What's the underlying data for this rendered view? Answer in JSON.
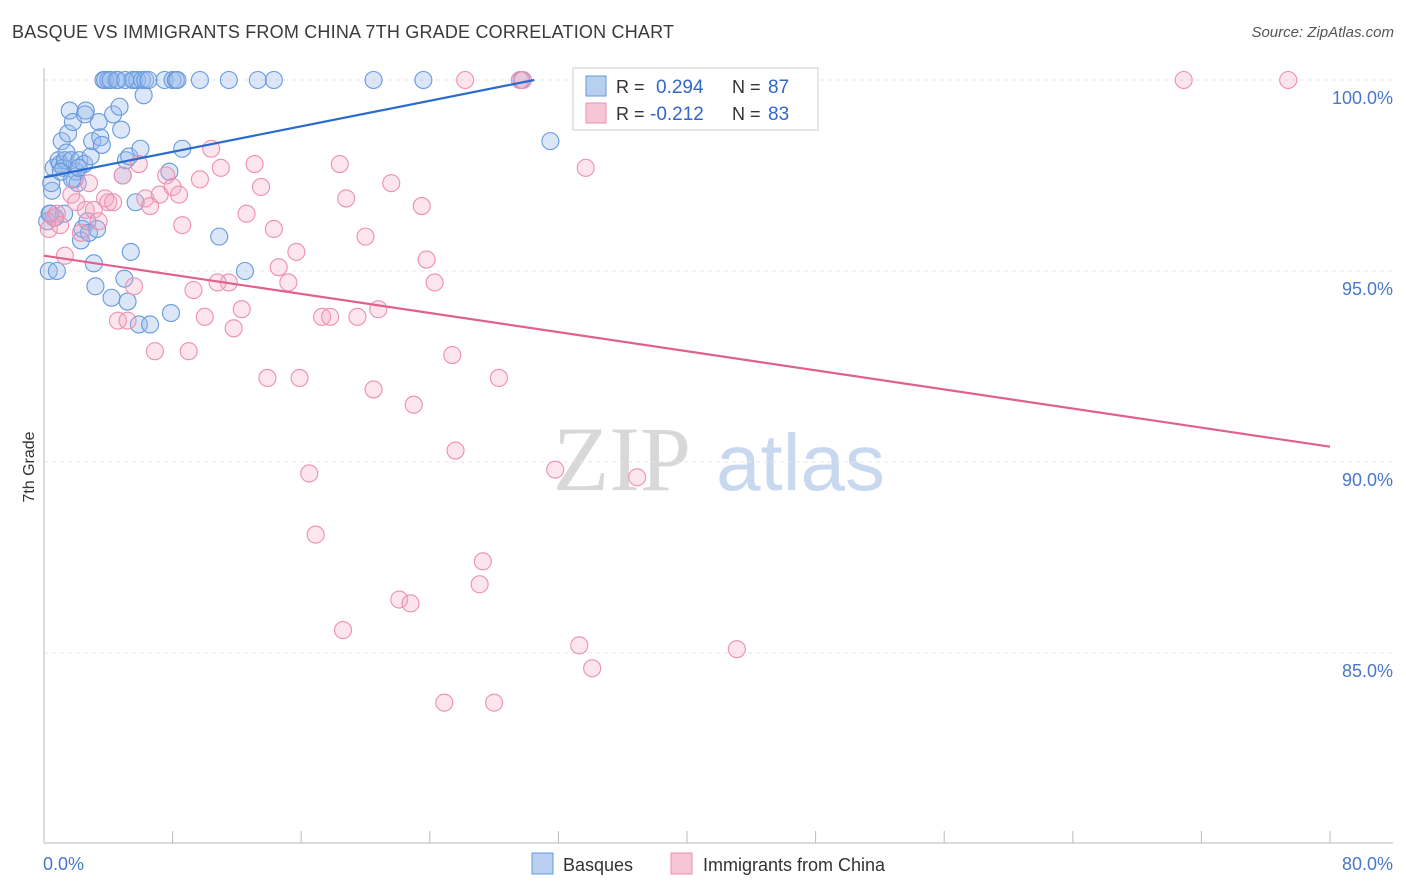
{
  "title": "BASQUE VS IMMIGRANTS FROM CHINA 7TH GRADE CORRELATION CHART",
  "source": "Source: ZipAtlas.com",
  "watermark": {
    "part1": "ZIP",
    "part2": "atlas"
  },
  "chart_data": {
    "type": "scatter",
    "xlabel": "",
    "ylabel": "7th Grade",
    "xlim": [
      0,
      80
    ],
    "ylim": [
      80,
      100.5
    ],
    "x_tick_labels": {
      "left": "0.0%",
      "right": "80.0%"
    },
    "y_ticks": [
      {
        "value": 100,
        "label": "100.0%"
      },
      {
        "value": 95,
        "label": "95.0%"
      },
      {
        "value": 90,
        "label": "90.0%"
      },
      {
        "value": 85,
        "label": "85.0%"
      }
    ],
    "grid": true,
    "legend_position": "top-center",
    "bottom_legend": [
      "Basques",
      "Immigrants from China"
    ],
    "stats": [
      {
        "r_label": "R =",
        "r": "0.294",
        "n_label": "N =",
        "n": "87"
      },
      {
        "r_label": "R =",
        "r": "-0.212",
        "n_label": "N =",
        "n": "83"
      }
    ],
    "series": [
      {
        "name": "Basques",
        "color": "#6699dd",
        "line_color": "#2a6ccc",
        "trend": {
          "x": [
            0,
            30.5
          ],
          "y": [
            97.45,
            100.0
          ]
        },
        "points": [
          [
            0.3,
            95.0
          ],
          [
            0.4,
            96.5
          ],
          [
            0.5,
            97.1
          ],
          [
            0.6,
            97.7
          ],
          [
            0.7,
            96.4
          ],
          [
            0.8,
            95.0
          ],
          [
            0.9,
            97.9
          ],
          [
            1.0,
            97.8
          ],
          [
            1.1,
            98.4
          ],
          [
            1.2,
            97.7
          ],
          [
            1.3,
            97.9
          ],
          [
            1.4,
            98.1
          ],
          [
            1.5,
            98.6
          ],
          [
            1.6,
            99.2
          ],
          [
            1.7,
            97.9
          ],
          [
            1.8,
            98.9
          ],
          [
            1.9,
            97.4
          ],
          [
            2.0,
            97.6
          ],
          [
            2.1,
            97.3
          ],
          [
            2.2,
            97.9
          ],
          [
            2.3,
            95.8
          ],
          [
            2.4,
            96.1
          ],
          [
            2.5,
            97.8
          ],
          [
            2.6,
            99.2
          ],
          [
            2.7,
            96.3
          ],
          [
            2.8,
            96.0
          ],
          [
            2.9,
            98.0
          ],
          [
            3.0,
            98.4
          ],
          [
            3.1,
            95.2
          ],
          [
            3.2,
            94.6
          ],
          [
            3.3,
            96.1
          ],
          [
            3.4,
            98.9
          ],
          [
            3.5,
            98.5
          ],
          [
            3.6,
            98.3
          ],
          [
            3.7,
            100.0
          ],
          [
            3.8,
            100.0
          ],
          [
            4.0,
            100.0
          ],
          [
            4.2,
            94.3
          ],
          [
            4.3,
            99.1
          ],
          [
            4.5,
            100.0
          ],
          [
            4.6,
            100.0
          ],
          [
            4.7,
            99.3
          ],
          [
            4.8,
            98.7
          ],
          [
            4.9,
            97.5
          ],
          [
            5.0,
            94.8
          ],
          [
            5.1,
            97.9
          ],
          [
            5.2,
            94.2
          ],
          [
            5.3,
            98.0
          ],
          [
            5.4,
            95.5
          ],
          [
            5.5,
            100.0
          ],
          [
            5.6,
            100.0
          ],
          [
            5.7,
            96.8
          ],
          [
            5.8,
            100.0
          ],
          [
            5.9,
            93.6
          ],
          [
            6.0,
            98.2
          ],
          [
            6.1,
            100.0
          ],
          [
            6.2,
            99.6
          ],
          [
            6.3,
            100.0
          ],
          [
            6.5,
            100.0
          ],
          [
            6.6,
            93.6
          ],
          [
            7.5,
            100.0
          ],
          [
            7.8,
            97.6
          ],
          [
            7.9,
            93.9
          ],
          [
            8.0,
            100.0
          ],
          [
            8.2,
            100.0
          ],
          [
            8.3,
            100.0
          ],
          [
            8.6,
            98.2
          ],
          [
            9.7,
            100.0
          ],
          [
            10.9,
            95.9
          ],
          [
            11.5,
            100.0
          ],
          [
            12.5,
            95.0
          ],
          [
            13.3,
            100.0
          ],
          [
            14.3,
            100.0
          ],
          [
            20.5,
            100.0
          ],
          [
            23.6,
            100.0
          ],
          [
            29.7,
            100.0
          ],
          [
            31.5,
            98.4
          ],
          [
            0.2,
            96.3
          ],
          [
            0.35,
            96.5
          ],
          [
            0.45,
            97.3
          ],
          [
            1.05,
            97.6
          ],
          [
            1.25,
            96.5
          ],
          [
            1.75,
            97.4
          ],
          [
            2.15,
            97.7
          ],
          [
            4.15,
            100.0
          ],
          [
            5.05,
            100.0
          ],
          [
            2.55,
            99.1
          ]
        ]
      },
      {
        "name": "Immigrants from China",
        "color": "#ee8fae",
        "line_color": "#e0608e",
        "trend": {
          "x": [
            0,
            80
          ],
          "y": [
            95.4,
            90.4
          ]
        },
        "points": [
          [
            0.3,
            96.1
          ],
          [
            0.6,
            96.4
          ],
          [
            0.8,
            96.5
          ],
          [
            1.0,
            96.2
          ],
          [
            1.3,
            95.4
          ],
          [
            1.7,
            97.0
          ],
          [
            2.0,
            96.8
          ],
          [
            2.3,
            96.0
          ],
          [
            2.6,
            96.6
          ],
          [
            2.8,
            97.3
          ],
          [
            3.1,
            96.6
          ],
          [
            3.4,
            96.3
          ],
          [
            3.8,
            96.9
          ],
          [
            4.0,
            96.8
          ],
          [
            4.3,
            96.8
          ],
          [
            4.6,
            93.7
          ],
          [
            4.9,
            97.5
          ],
          [
            5.2,
            93.7
          ],
          [
            5.6,
            94.6
          ],
          [
            5.9,
            97.8
          ],
          [
            6.3,
            96.9
          ],
          [
            6.6,
            96.7
          ],
          [
            6.9,
            92.9
          ],
          [
            7.2,
            97.0
          ],
          [
            7.6,
            97.5
          ],
          [
            8.0,
            97.2
          ],
          [
            8.4,
            97.0
          ],
          [
            8.6,
            96.2
          ],
          [
            9.0,
            92.9
          ],
          [
            9.3,
            94.5
          ],
          [
            9.7,
            97.4
          ],
          [
            10.0,
            93.8
          ],
          [
            10.4,
            98.2
          ],
          [
            11.0,
            97.7
          ],
          [
            11.5,
            94.7
          ],
          [
            11.8,
            93.5
          ],
          [
            12.3,
            94.0
          ],
          [
            12.6,
            96.5
          ],
          [
            13.1,
            97.8
          ],
          [
            13.5,
            97.2
          ],
          [
            14.3,
            96.1
          ],
          [
            14.6,
            95.1
          ],
          [
            15.2,
            94.7
          ],
          [
            15.7,
            95.5
          ],
          [
            16.5,
            89.7
          ],
          [
            17.3,
            93.8
          ],
          [
            17.8,
            93.8
          ],
          [
            18.4,
            97.8
          ],
          [
            18.8,
            96.9
          ],
          [
            19.5,
            93.8
          ],
          [
            20.0,
            95.9
          ],
          [
            20.5,
            91.9
          ],
          [
            20.8,
            94.0
          ],
          [
            21.6,
            97.3
          ],
          [
            22.1,
            86.4
          ],
          [
            22.8,
            86.3
          ],
          [
            23.0,
            91.5
          ],
          [
            23.5,
            96.7
          ],
          [
            23.8,
            95.3
          ],
          [
            24.3,
            94.7
          ],
          [
            24.9,
            83.7
          ],
          [
            25.4,
            92.8
          ],
          [
            25.6,
            90.3
          ],
          [
            26.2,
            100.0
          ],
          [
            27.1,
            86.8
          ],
          [
            27.3,
            87.4
          ],
          [
            28.0,
            83.7
          ],
          [
            28.3,
            92.2
          ],
          [
            29.6,
            100.0
          ],
          [
            29.8,
            100.0
          ],
          [
            31.8,
            89.8
          ],
          [
            33.3,
            85.2
          ],
          [
            33.7,
            97.7
          ],
          [
            34.1,
            84.6
          ],
          [
            36.9,
            89.6
          ],
          [
            43.1,
            85.1
          ],
          [
            70.9,
            100.0
          ],
          [
            77.4,
            100.0
          ],
          [
            10.8,
            94.7
          ],
          [
            13.9,
            92.2
          ],
          [
            15.9,
            92.2
          ],
          [
            16.9,
            88.1
          ],
          [
            18.6,
            85.6
          ]
        ]
      }
    ]
  }
}
